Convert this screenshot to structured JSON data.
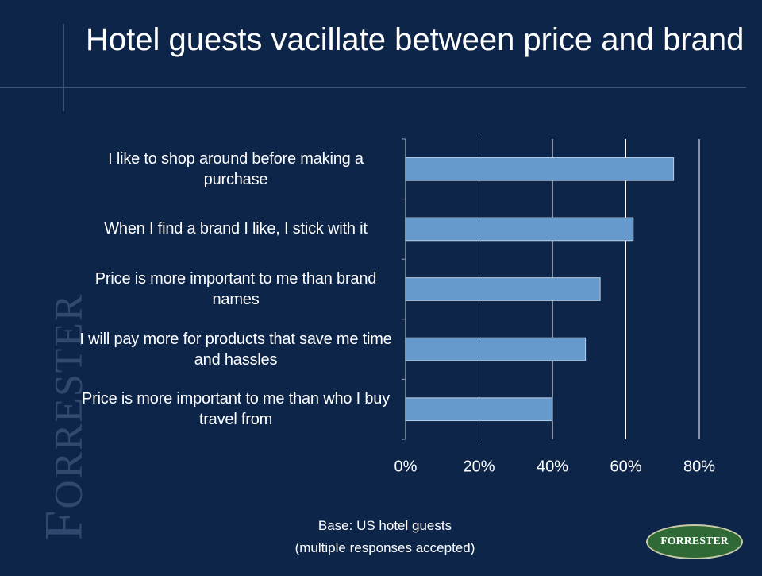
{
  "title": "Hotel guests vacillate between price and brand",
  "chart_data": {
    "type": "bar",
    "orientation": "horizontal",
    "categories": [
      "I like to shop around before making a purchase",
      "When I find a brand I like, I stick with it",
      "Price is more important to me than brand names",
      "I will pay more for products that save me time and hassles",
      "Price is more important to me than who I buy travel from"
    ],
    "values": [
      73,
      62,
      53,
      49,
      40
    ],
    "color": "#6699cc",
    "xlim": [
      0,
      80
    ],
    "xticks": [
      {
        "value": 0,
        "label": "0%"
      },
      {
        "value": 20,
        "label": "20%"
      },
      {
        "value": 40,
        "label": "40%"
      },
      {
        "value": 60,
        "label": "60%"
      },
      {
        "value": 80,
        "label": "80%"
      }
    ],
    "grid": true
  },
  "footnote": [
    "Base: US hotel guests",
    "(multiple responses accepted)"
  ],
  "side_logo": "FORRESTER",
  "logo": "FORRESTER"
}
